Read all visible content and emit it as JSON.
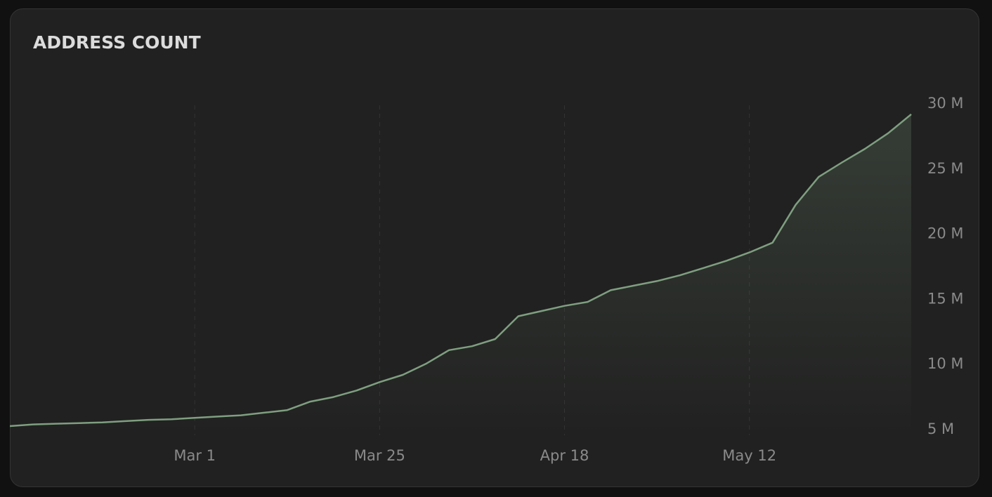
{
  "chart_data": {
    "type": "area",
    "title": "ADDRESS COUNT",
    "categories": [
      null,
      null,
      null,
      null,
      null,
      null,
      null,
      null,
      "Mar 1",
      null,
      null,
      null,
      null,
      null,
      null,
      null,
      "Mar 25",
      null,
      null,
      null,
      null,
      null,
      null,
      null,
      "Apr 18",
      null,
      null,
      null,
      null,
      null,
      null,
      null,
      "May 12",
      null,
      null,
      null,
      null,
      null,
      null,
      null
    ],
    "values": [
      5270000,
      5400000,
      5450000,
      5500000,
      5550000,
      5650000,
      5750000,
      5800000,
      5900000,
      6000000,
      6100000,
      6300000,
      6500000,
      7150000,
      7500000,
      8000000,
      8650000,
      9200000,
      10050000,
      11100000,
      11400000,
      11950000,
      13700000,
      14100000,
      14500000,
      14800000,
      15700000,
      16050000,
      16400000,
      16850000,
      17400000,
      17950000,
      18600000,
      19350000,
      22250000,
      24400000,
      25500000,
      26550000,
      27750000,
      29200000
    ],
    "color": "#7f9f80",
    "ylim": [
      5000000,
      30000000
    ],
    "yticks": [
      {
        "value": 5000000,
        "label": "5 M"
      },
      {
        "value": 10000000,
        "label": "10 M"
      },
      {
        "value": 15000000,
        "label": "15 M"
      },
      {
        "value": 20000000,
        "label": "20 M"
      },
      {
        "value": 25000000,
        "label": "25 M"
      },
      {
        "value": 30000000,
        "label": "30 M"
      }
    ],
    "grid": true
  }
}
